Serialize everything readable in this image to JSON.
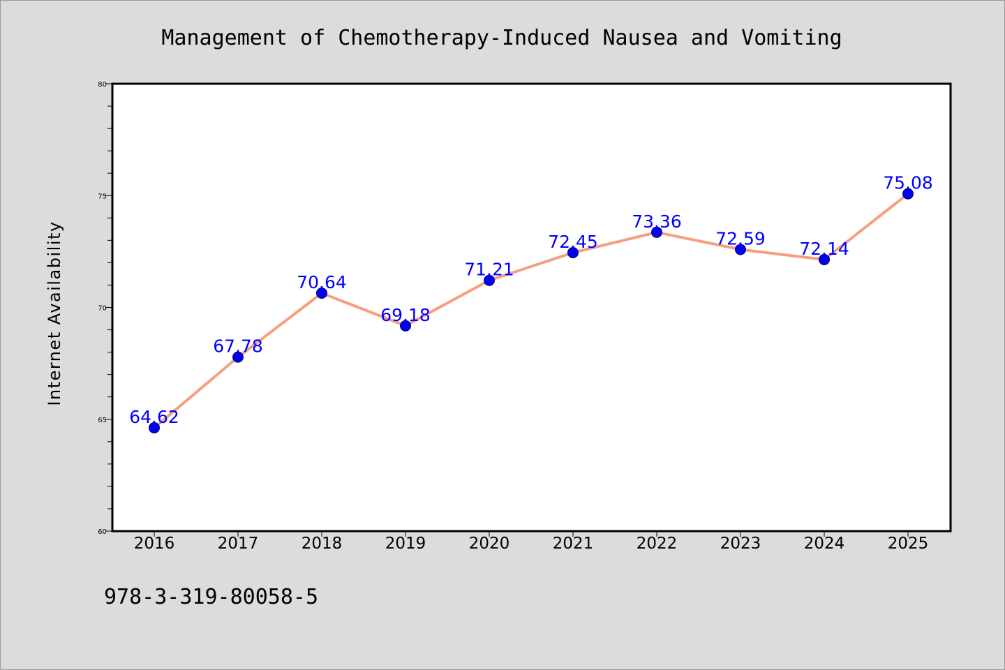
{
  "colors": {
    "background": "#dcdcdc",
    "plot_background": "#ffffff",
    "line": "#f4a07e",
    "marker": "#0000ee",
    "data_label": "#0000ff"
  },
  "footer": {
    "isbn": "978-3-319-80058-5"
  },
  "chart_data": {
    "type": "line",
    "title": "Management of Chemotherapy-Induced Nausea and Vomiting",
    "xlabel": "",
    "ylabel": "Internet Availability",
    "x": [
      "2016",
      "2017",
      "2018",
      "2019",
      "2020",
      "2021",
      "2022",
      "2023",
      "2024",
      "2025"
    ],
    "series": [
      {
        "values": [
          64.62,
          67.78,
          70.64,
          69.18,
          71.21,
          72.45,
          73.36,
          72.59,
          72.14,
          75.08
        ],
        "labels": [
          "64.62",
          "67.78",
          "70.64",
          "69.18",
          "71.21",
          "72.45",
          "73.36",
          "72.59",
          "72.14",
          "75.08"
        ]
      }
    ],
    "ylim": [
      60,
      80
    ],
    "yticks": [
      60,
      65,
      70,
      75,
      80
    ],
    "yminor_step": 1,
    "grid": false,
    "legend": "none"
  }
}
